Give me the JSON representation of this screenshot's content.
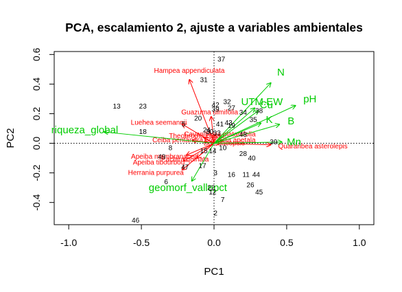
{
  "chart_data": {
    "type": "scatter",
    "title": "PCA, escalamiento 2, ajuste a variables ambientales",
    "xlabel": "PC1",
    "ylabel": "PC2",
    "xlim": [
      -1.1,
      1.1
    ],
    "ylim": [
      -0.55,
      0.62
    ],
    "x_ticks": [
      "-1.0",
      "-0.5",
      "0.0",
      "0.5",
      "1.0"
    ],
    "x_tick_values": [
      -1.0,
      -0.5,
      0.0,
      0.5,
      1.0
    ],
    "y_ticks": [
      "-0.4",
      "-0.2",
      "0.0",
      "0.2",
      "0.4",
      "0.6"
    ],
    "y_tick_values": [
      -0.4,
      -0.2,
      0.0,
      0.2,
      0.4,
      0.6
    ],
    "reference_lines": "dotted at x=0 and y=0",
    "colors": {
      "sites": "#000000",
      "species": "#ff0000",
      "environment": "#00cc00"
    },
    "sites": [
      {
        "label": "37",
        "x": 0.05,
        "y": 0.57
      },
      {
        "label": "31",
        "x": -0.07,
        "y": 0.43
      },
      {
        "label": "13",
        "x": -0.67,
        "y": 0.25
      },
      {
        "label": "23",
        "x": -0.49,
        "y": 0.25
      },
      {
        "label": "32",
        "x": 0.09,
        "y": 0.28
      },
      {
        "label": "42",
        "x": 0.01,
        "y": 0.26
      },
      {
        "label": "27",
        "x": 0.12,
        "y": 0.24
      },
      {
        "label": "39",
        "x": 0.01,
        "y": 0.23
      },
      {
        "label": "34",
        "x": 0.2,
        "y": 0.21
      },
      {
        "label": "38",
        "x": 0.31,
        "y": 0.22
      },
      {
        "label": "20",
        "x": -0.11,
        "y": 0.17
      },
      {
        "label": "35",
        "x": 0.27,
        "y": 0.16
      },
      {
        "label": "5",
        "x": -0.21,
        "y": 0.13
      },
      {
        "label": "41",
        "x": 0.04,
        "y": 0.13
      },
      {
        "label": "43",
        "x": 0.1,
        "y": 0.14
      },
      {
        "label": "19",
        "x": 0.12,
        "y": 0.12
      },
      {
        "label": "18",
        "x": -0.49,
        "y": 0.08
      },
      {
        "label": "24",
        "x": -0.05,
        "y": 0.09
      },
      {
        "label": "30",
        "x": -0.03,
        "y": 0.08
      },
      {
        "label": "33",
        "x": 0.02,
        "y": 0.07
      },
      {
        "label": "48",
        "x": 0.2,
        "y": 0.06
      },
      {
        "label": "39",
        "x": 0.41,
        "y": 0.01
      },
      {
        "label": "8",
        "x": -0.3,
        "y": -0.03
      },
      {
        "label": "10",
        "x": 0.06,
        "y": -0.03
      },
      {
        "label": "28",
        "x": 0.2,
        "y": -0.07
      },
      {
        "label": "15",
        "x": -0.07,
        "y": -0.05
      },
      {
        "label": "14",
        "x": -0.01,
        "y": -0.05
      },
      {
        "label": "40",
        "x": 0.26,
        "y": -0.1
      },
      {
        "label": "49",
        "x": -0.36,
        "y": -0.09
      },
      {
        "label": "47",
        "x": -0.2,
        "y": -0.16
      },
      {
        "label": "17",
        "x": -0.08,
        "y": -0.15
      },
      {
        "label": "3",
        "x": 0.01,
        "y": -0.2
      },
      {
        "label": "16",
        "x": 0.12,
        "y": -0.21
      },
      {
        "label": "11",
        "x": 0.22,
        "y": -0.21
      },
      {
        "label": "44",
        "x": 0.29,
        "y": -0.21
      },
      {
        "label": "6",
        "x": -0.33,
        "y": -0.26
      },
      {
        "label": "26",
        "x": 0.25,
        "y": -0.28
      },
      {
        "label": "22",
        "x": -0.02,
        "y": -0.3
      },
      {
        "label": "12",
        "x": -0.01,
        "y": -0.33
      },
      {
        "label": "45",
        "x": 0.31,
        "y": -0.33
      },
      {
        "label": "7",
        "x": 0.06,
        "y": -0.38
      },
      {
        "label": "2",
        "x": 0.01,
        "y": -0.47
      },
      {
        "label": "46",
        "x": -0.54,
        "y": -0.52
      }
    ],
    "species": [
      {
        "label": "Hampea appendiculata",
        "x": -0.17,
        "y": 0.49,
        "ax": -0.17,
        "ay": 0.43
      },
      {
        "label": "Guazuma ulmifolia",
        "x": -0.03,
        "y": 0.21,
        "ax": -0.02,
        "ay": 0.18
      },
      {
        "label": "Luehea seemannii",
        "x": -0.38,
        "y": 0.14,
        "ax": -0.22,
        "ay": 0.13
      },
      {
        "label": "Cavanillesia platanifolia",
        "x": 0.04,
        "y": 0.06,
        "ax": 0.01,
        "ay": 0.06
      },
      {
        "label": "Theobroma cacao",
        "x": -0.12,
        "y": 0.05,
        "ax": -0.07,
        "ay": 0.04
      },
      {
        "label": "Ceiba pentandra",
        "x": -0.25,
        "y": 0.02,
        "ax": -0.15,
        "ay": 0.02
      },
      {
        "label": "Sterculia apetala",
        "x": 0.11,
        "y": 0.02,
        "ax": 0.06,
        "ay": 0.02
      },
      {
        "label": "Herrania purpurea",
        "x": -0.4,
        "y": -0.2,
        "ax": -0.22,
        "ay": -0.18
      },
      {
        "label": "Apeiba tibourbou",
        "x": -0.38,
        "y": -0.13,
        "ax": -0.21,
        "ay": -0.12
      },
      {
        "label": "Apeiba membranacea",
        "x": -0.34,
        "y": -0.09,
        "ax": -0.19,
        "ay": -0.08
      },
      {
        "label": "Pachira quinata",
        "x": -0.2,
        "y": -0.11,
        "ax": -0.12,
        "ay": -0.1
      },
      {
        "label": "Quararibea asterolepis",
        "x": 0.68,
        "y": -0.02,
        "ax": 0.39,
        "ay": -0.01
      },
      {
        "label": "Bombacopsis",
        "x": 0.07,
        "y": 0.0,
        "ax": 0.04,
        "ay": 0.0
      }
    ],
    "environment": [
      {
        "label": "N",
        "x": 0.46,
        "y": 0.48
      },
      {
        "label": "pH",
        "x": 0.66,
        "y": 0.3
      },
      {
        "label": "UTM.EW",
        "x": 0.33,
        "y": 0.28
      },
      {
        "label": "Cu",
        "x": 0.36,
        "y": 0.26
      },
      {
        "label": "K",
        "x": 0.38,
        "y": 0.16
      },
      {
        "label": "B",
        "x": 0.53,
        "y": 0.15
      },
      {
        "label": "Mn",
        "x": 0.55,
        "y": 0.01
      },
      {
        "label": "riqueza_global",
        "x": -0.89,
        "y": 0.09
      },
      {
        "label": "geomorf_vallepct",
        "x": -0.18,
        "y": -0.3
      }
    ]
  }
}
